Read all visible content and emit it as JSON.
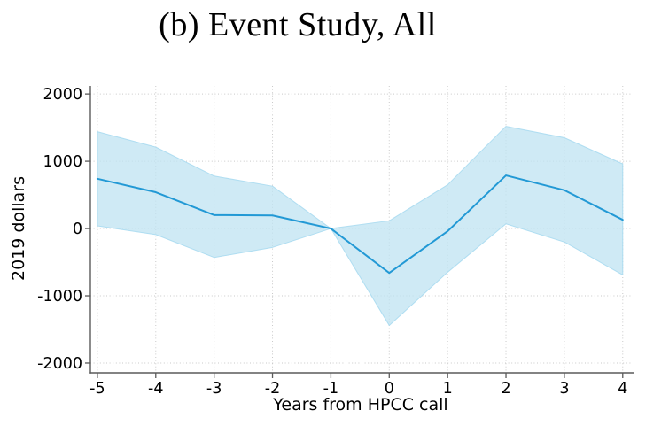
{
  "title": "(b) Event Study, All",
  "chart_data": {
    "type": "line",
    "title": "(b) Event Study, All",
    "xlabel": "Years from HPCC call",
    "ylabel": "2019 dollars",
    "x": [
      -5,
      -4,
      -3,
      -2,
      -1,
      0,
      1,
      2,
      3,
      4
    ],
    "series": [
      {
        "name": "point estimate",
        "values": [
          740,
          540,
          200,
          195,
          0,
          -660,
          -40,
          790,
          570,
          130
        ]
      },
      {
        "name": "ci upper",
        "values": [
          1440,
          1210,
          780,
          630,
          0,
          115,
          650,
          1520,
          1350,
          960
        ]
      },
      {
        "name": "ci lower",
        "values": [
          40,
          -90,
          -430,
          -280,
          0,
          -1440,
          -650,
          70,
          -200,
          -690
        ]
      }
    ],
    "xticks": [
      -5,
      -4,
      -3,
      -2,
      -1,
      0,
      1,
      2,
      3,
      4
    ],
    "yticks": [
      -2000,
      -1000,
      0,
      1000,
      2000
    ],
    "xlim": [
      -5.12,
      4.14
    ],
    "ylim": [
      -2145,
      2120
    ],
    "grid": "dotted, both axes",
    "legend": "none",
    "colors": {
      "line": "#2299D5",
      "band": "#BFE3F2",
      "band_edge": "#A6D9F0",
      "grid": "#C9C9C9",
      "spine": "#5A5A5A",
      "text": "#000000"
    }
  }
}
